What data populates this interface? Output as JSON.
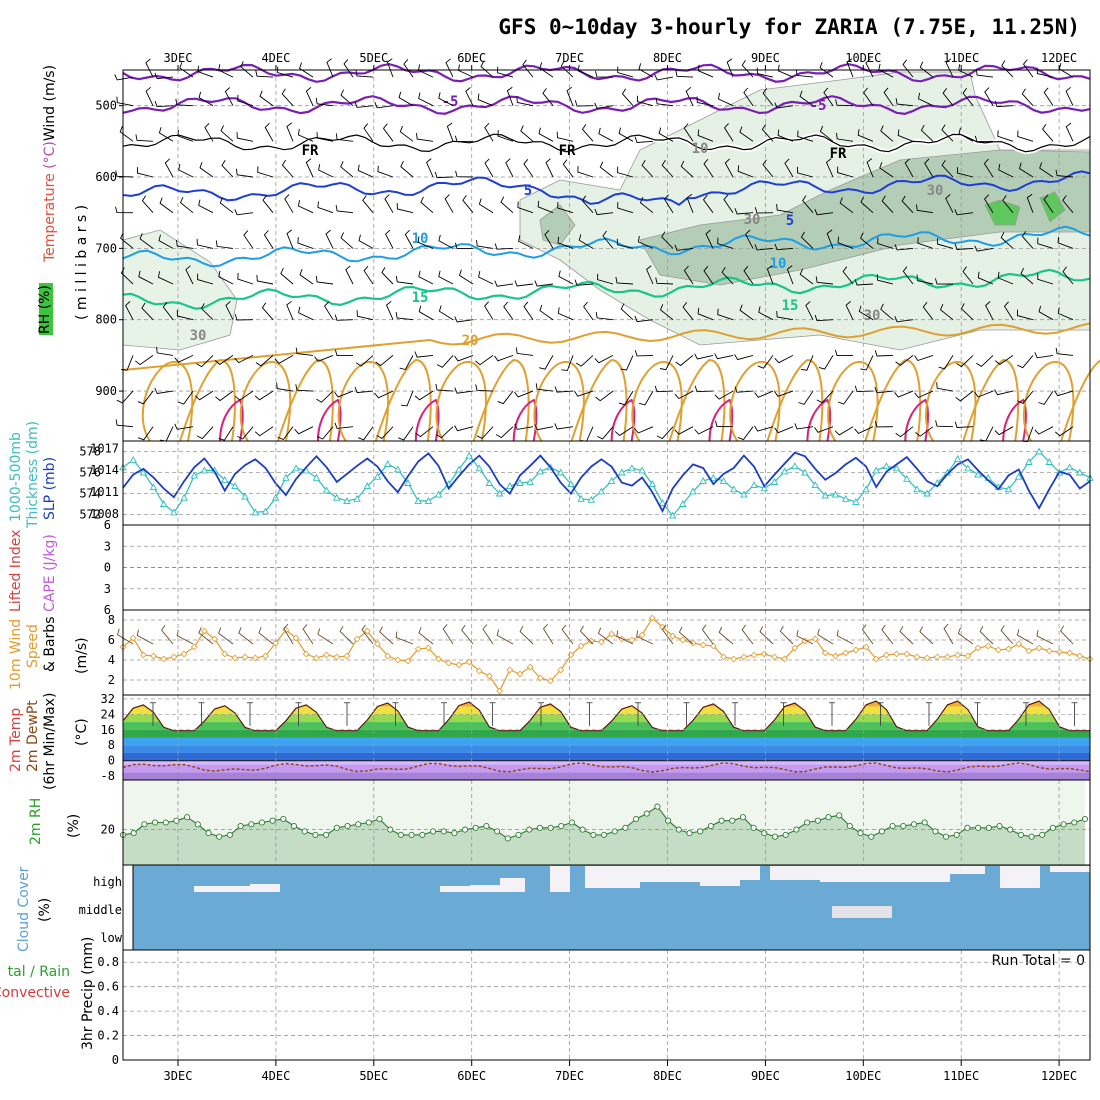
{
  "title": "GFS 0~10day 3-hourly for ZARIA (7.75E, 11.25N)",
  "colors": {
    "temp_purple": "#7a1fb5",
    "temp_black": "#000000",
    "temp_blue": "#1d3fd6",
    "temp_cyan": "#1e9ee6",
    "temp_green": "#19c48a",
    "temp_orange": "#e0a030",
    "rh_fill": "#c6e3c6",
    "slp": "#1c3cc8",
    "thickness": "#2dbdbd",
    "wind_speed": "#e59a2a",
    "cloud": "#6aaad5",
    "rh2m": "#4caf50",
    "li": "#d84040"
  },
  "panels": {
    "pressure_rh": {
      "ylabels": [
        "Temperature ",
        "(°C)",
        "Wind (m/s)"
      ],
      "ylabel_units": "( m i l l i b a r s )",
      "rh_legend": "RH (%)",
      "contour_labels": [
        "-5",
        "-5",
        "FR",
        "FR",
        "FR",
        "5",
        "5",
        "10",
        "10",
        "15",
        "15",
        "20",
        "30",
        "30",
        "30",
        "30",
        "10"
      ]
    },
    "slp_thick": {
      "ylabel1": "1000-500mb",
      "ylabel2": "Thickness (dm)",
      "ylabel3": "SLP (mb)"
    },
    "cape_li": {
      "ylabel1": "Lifted Index",
      "ylabel2": "CAPE (J/kg)"
    },
    "wind10m": {
      "ylabel1": "10m Wind",
      "ylabel2": "Speed",
      "ylabel3": "& Barbs",
      "ylabel4": "(m/s)"
    },
    "temp2m": {
      "ylabel1": "2m Temp",
      "ylabel2": "2m DewPt",
      "ylabel3": "(6hr Min/Max)",
      "ylabel4": "(°C)"
    },
    "rh2m": {
      "ylabel1": "2m RH",
      "ylabel2": "(%)"
    },
    "cloud": {
      "ylabel1": "Cloud Cover",
      "ylabel2": "(%)"
    },
    "precip": {
      "ylabel1": "tal / Rain",
      "ylabel2": "Convective",
      "ylabel3": "3hr Precip (mm)",
      "run_total": "Run Total = 0"
    }
  },
  "chart_data": [
    {
      "type": "heatmap",
      "name": "pressure_cross_section",
      "x_ticks": [
        "3DEC",
        "4DEC",
        "5DEC",
        "6DEC",
        "7DEC",
        "8DEC",
        "9DEC",
        "10DEC",
        "11DEC",
        "12DEC"
      ],
      "y_ticks": [
        500,
        600,
        700,
        800,
        900
      ],
      "ylim": [
        450,
        970
      ],
      "temperature_contour_levels": [
        -5,
        0,
        5,
        10,
        15,
        20
      ]
    },
    {
      "type": "line",
      "name": "slp_thickness",
      "y_left_ticks": [
        572,
        574,
        576,
        578
      ],
      "y_right_ticks": [
        1008,
        1011,
        1014,
        1017
      ],
      "series": [
        {
          "name": "Thickness (dm)",
          "axis": "left",
          "values": [
            576.5,
            577.2,
            576,
            574.6,
            573,
            572.2,
            573.6,
            575.7,
            576.2,
            576.2,
            575.3,
            574.7,
            573.7,
            572.2,
            572.3,
            573.6,
            575.5,
            576.4,
            576.2,
            575.5,
            574.3,
            573.6,
            573.3,
            573.5,
            574.7,
            575.6,
            576.8,
            576.3,
            575,
            573.3,
            573.3,
            573.9,
            574.9,
            576.3,
            577.6,
            576.4,
            575,
            574,
            574.7,
            575,
            575.1,
            576.1,
            576.5,
            576,
            574.9,
            573.5,
            573.4,
            574.2,
            575.2,
            576,
            576.4,
            576.2,
            574.9,
            573.1,
            571.9,
            573,
            574.2,
            575.2,
            575.5,
            575.2,
            574.4,
            573.9,
            574.8,
            574.5,
            575.1,
            576.1,
            576.6,
            576,
            574.8,
            573.8,
            573.9,
            573.5,
            573.2,
            574.4,
            576.2,
            576.6,
            576.4,
            575.4,
            574.4,
            574,
            575,
            576,
            577.3,
            576.4,
            575.8,
            575.5,
            574.6,
            574.4,
            575.6,
            577,
            578,
            577,
            576,
            576.5,
            576,
            575.5
          ]
        },
        {
          "name": "SLP (mb)",
          "axis": "right",
          "values": [
            1011.6,
            1013.4,
            1014.2,
            1013,
            1011.5,
            1010.3,
            1012.5,
            1014.4,
            1015.6,
            1013.8,
            1011.2,
            1013.5,
            1014.7,
            1015.5,
            1014.3,
            1012.2,
            1010.6,
            1012.8,
            1014.4,
            1015.9,
            1014.4,
            1012.4,
            1013.5,
            1014.6,
            1015.6,
            1014.5,
            1012.5,
            1011,
            1013.2,
            1015.2,
            1016.3,
            1014.6,
            1011.5,
            1013.2,
            1014.8,
            1016,
            1014.5,
            1012.1,
            1010.8,
            1013.3,
            1014.6,
            1016,
            1014.4,
            1012.3,
            1010.8,
            1013,
            1014.5,
            1015.5,
            1014.5,
            1012.3,
            1011.9,
            1013,
            1011,
            1008.4,
            1011.5,
            1013.3,
            1014.8,
            1014.3,
            1012.1,
            1013.5,
            1014.3,
            1016,
            1014.5,
            1011.8,
            1013.4,
            1014.9,
            1016.4,
            1015.9,
            1014.2,
            1012.7,
            1013.6,
            1014.8,
            1015.7,
            1014.5,
            1011.7,
            1013.8,
            1014.8,
            1015.8,
            1014.2,
            1012.5,
            1011.8,
            1013.5,
            1014.8,
            1015.5,
            1014,
            1012.6,
            1011.4,
            1013.3,
            1014.1,
            1011.2,
            1008.8,
            1011.4,
            1013.8,
            1013.4,
            1011.5,
            1012.5
          ]
        }
      ]
    },
    {
      "type": "line",
      "name": "cape_lifted_index",
      "y_ticks": [
        -6,
        -3,
        0,
        3,
        6
      ],
      "ylim": [
        -6,
        6
      ],
      "values": []
    },
    {
      "type": "line",
      "name": "wind10m",
      "y_ticks": [
        2,
        4,
        6,
        8
      ],
      "ylim": [
        0.5,
        9
      ],
      "values": [
        5.3,
        6.2,
        4.5,
        4.4,
        4.1,
        4.3,
        4.6,
        5.3,
        6.9,
        6.1,
        4.6,
        4.2,
        4.3,
        4.2,
        4.4,
        5.7,
        7,
        6.2,
        4.6,
        4.2,
        4.5,
        4.3,
        4.4,
        6.1,
        6.9,
        5.6,
        4.4,
        4,
        3.9,
        5.1,
        5.2,
        4.1,
        3.7,
        3.5,
        3.8,
        2.9,
        2.4,
        0.9,
        3,
        2.6,
        3.3,
        2.2,
        1.9,
        3,
        4.5,
        5.4,
        5.9,
        5.8,
        6.6,
        6.1,
        6,
        6.5,
        8.2,
        7.3,
        6.4,
        6,
        5.7,
        5.5,
        5.4,
        4.3,
        4.1,
        4.3,
        4.5,
        4.6,
        4.3,
        4.1,
        5.2,
        5.9,
        6.1,
        4.7,
        4.4,
        4.7,
        5,
        5.3,
        4.1,
        4.5,
        4.6,
        4.6,
        4.3,
        4.2,
        4.3,
        4.3,
        4.5,
        4.4,
        5.2,
        5.4,
        5,
        5.1,
        5.6,
        4.9,
        5.2,
        4.9,
        4.8,
        4.7,
        4.4,
        4.1
      ]
    },
    {
      "type": "area",
      "name": "temp2m",
      "y_ticks": [
        -8,
        0,
        8,
        16,
        24,
        32
      ],
      "ylim": [
        -10,
        34
      ],
      "temperature_series": "daily cycle, min ~15-16 °C at dawn, max ~28-31 °C in afternoon",
      "dewpoint_approx": -3.5
    },
    {
      "type": "area",
      "name": "rh2m",
      "y_ticks": [
        20
      ],
      "ylim": [
        0,
        48
      ],
      "values": [
        17,
        18,
        23,
        24,
        24,
        25,
        27,
        23,
        18,
        16,
        17,
        22,
        23,
        24,
        25,
        26,
        22,
        19,
        17,
        17,
        21,
        22,
        23,
        24,
        26,
        20,
        17,
        17,
        17,
        19,
        19,
        18,
        20,
        21,
        22,
        19,
        15,
        17,
        20,
        21,
        21,
        22,
        24,
        20,
        17,
        17,
        19,
        21,
        26,
        29,
        33,
        25,
        20,
        18,
        19,
        22,
        25,
        25,
        27,
        21,
        18,
        16,
        17,
        20,
        24,
        25,
        27,
        28,
        22,
        18,
        16,
        19,
        22,
        22,
        23,
        24,
        19,
        16,
        17,
        21,
        21,
        21,
        22,
        20,
        17,
        16,
        17,
        21,
        23,
        24,
        26
      ]
    },
    {
      "type": "bar",
      "name": "cloud_cover",
      "y_ticks": [
        "low",
        "middle",
        "high"
      ]
    },
    {
      "type": "bar",
      "name": "precip3hr",
      "y_ticks": [
        0,
        0.2,
        0.4,
        0.6,
        0.8
      ],
      "ylim": [
        0,
        0.9
      ],
      "values": []
    }
  ]
}
